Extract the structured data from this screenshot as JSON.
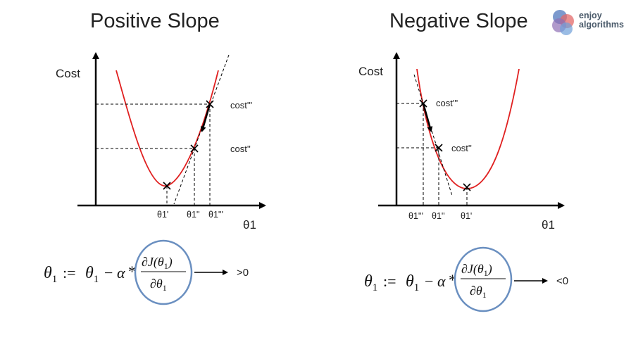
{
  "titles": {
    "left": "Positive Slope",
    "right": "Negative Slope"
  },
  "logo": {
    "line1": "enjoy",
    "line2": "algorithms",
    "colors": [
      "#5b7fc0",
      "#e36a6a",
      "#8e6fb5",
      "#6fa0d8"
    ]
  },
  "left_plot": {
    "ylabel": "Cost",
    "xlabel": "θ1",
    "ticks": [
      "θ1'",
      "θ1''",
      "θ1'''"
    ],
    "costs": [
      "cost'''",
      "cost''"
    ]
  },
  "right_plot": {
    "ylabel": "Cost",
    "xlabel": "θ1",
    "ticks": [
      "θ1'''",
      "θ1''",
      "θ1'"
    ],
    "costs": [
      "cost'''",
      "cost''"
    ]
  },
  "formula_left": {
    "lhs": "θ",
    "sub": "1",
    "assign": ":=",
    "rhs_theta": "θ",
    "rhs_sub": "1",
    "minus": "−",
    "alpha": "α",
    "star": "*",
    "num": "∂J(θ",
    "num_sub": "1",
    "num_close": ")",
    "den": "∂θ",
    "den_sub": "1",
    "result": ">0"
  },
  "formula_right": {
    "lhs": "θ",
    "sub": "1",
    "assign": ":=",
    "rhs_theta": "θ",
    "rhs_sub": "1",
    "minus": "−",
    "alpha": "α",
    "star": "*",
    "num": "∂J(θ",
    "num_sub": "1",
    "num_close": ")",
    "den": "∂θ",
    "den_sub": "1",
    "result": "<0"
  },
  "colors": {
    "curve": "#e02020",
    "circle": "#6a8fc0",
    "axis": "#000000"
  }
}
